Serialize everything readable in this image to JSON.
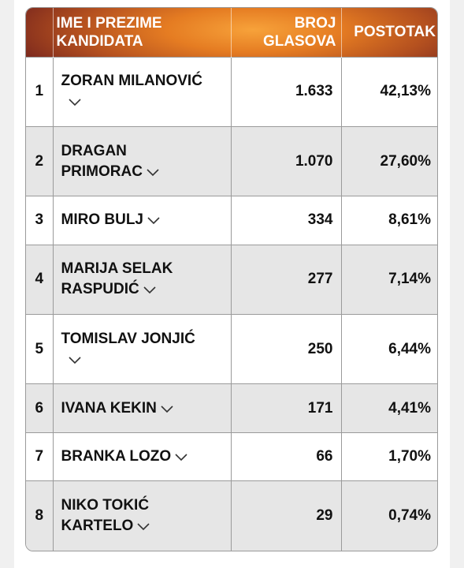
{
  "table": {
    "headers": {
      "name": "IME I PREZIME KANDIDATA",
      "votes": "BROJ GLASOVA",
      "percent": "POSTOTAK"
    },
    "rows": [
      {
        "rank": "1",
        "name_line1": "ZORAN MILANOVIĆ",
        "name_line2": "",
        "votes": "1.633",
        "percent": "42,13%"
      },
      {
        "rank": "2",
        "name_line1": "DRAGAN",
        "name_line2": "PRIMORAC",
        "votes": "1.070",
        "percent": "27,60%"
      },
      {
        "rank": "3",
        "name_line1": "MIRO BULJ",
        "name_line2": "",
        "votes": "334",
        "percent": "8,61%"
      },
      {
        "rank": "4",
        "name_line1": "MARIJA SELAK",
        "name_line2": "RASPUDIĆ",
        "votes": "277",
        "percent": "7,14%"
      },
      {
        "rank": "5",
        "name_line1": "TOMISLAV JONJIĆ",
        "name_line2": "",
        "votes": "250",
        "percent": "6,44%"
      },
      {
        "rank": "6",
        "name_line1": "IVANA KEKIN",
        "name_line2": "",
        "votes": "171",
        "percent": "4,41%"
      },
      {
        "rank": "7",
        "name_line1": "BRANKA LOZO",
        "name_line2": "",
        "votes": "66",
        "percent": "1,70%"
      },
      {
        "rank": "8",
        "name_line1": "NIKO TOKIĆ",
        "name_line2": "KARTELO",
        "votes": "29",
        "percent": "0,74%"
      }
    ],
    "expand_icon": "chevron-down-icon",
    "header_gradient_colors": [
      "#f7a23a",
      "#e57c22",
      "#b5511f",
      "#7e2a1e"
    ]
  }
}
